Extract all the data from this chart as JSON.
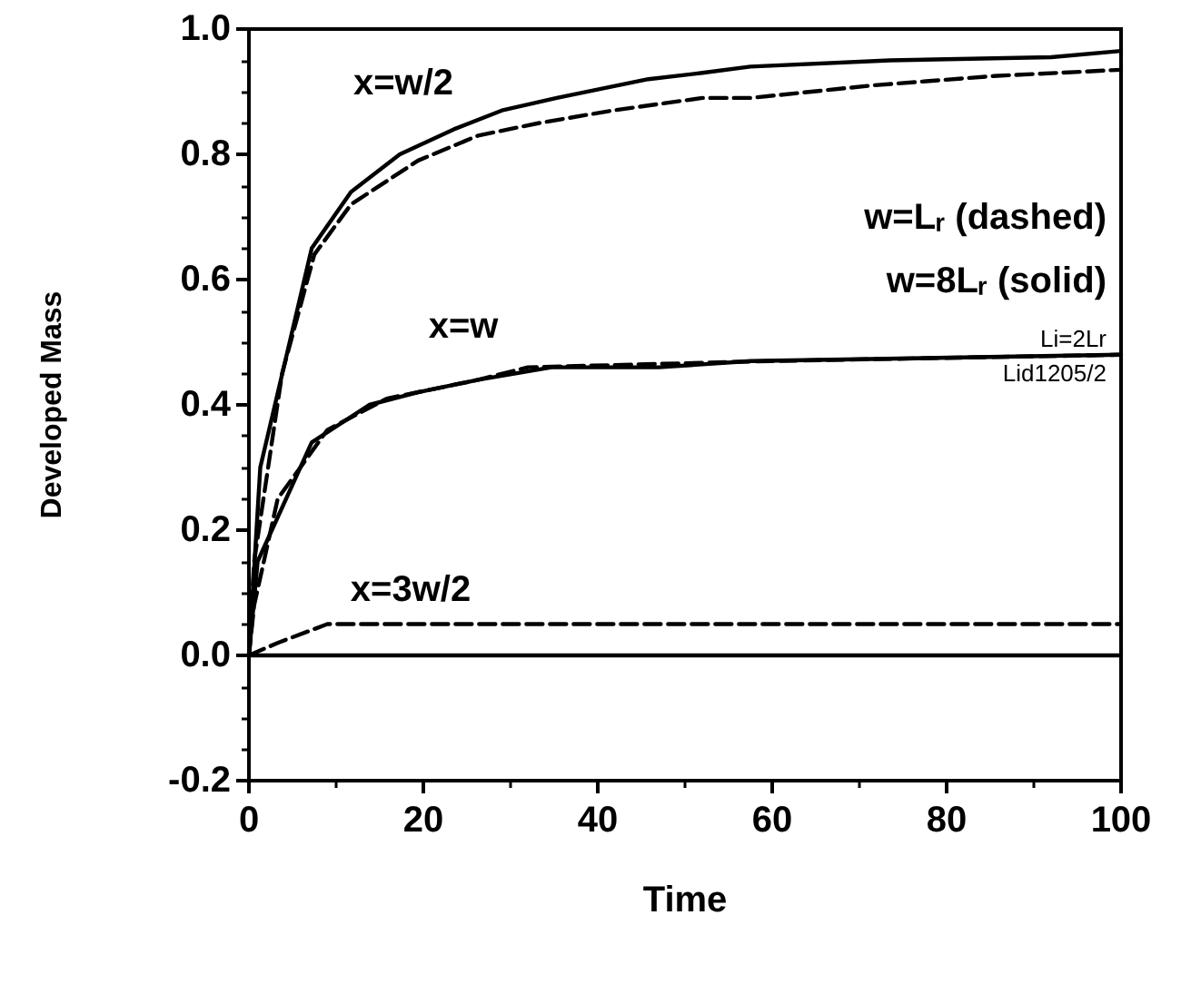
{
  "chart_data": {
    "type": "line",
    "xlabel": "Time",
    "ylabel": "Developed Mass",
    "xlim": [
      0,
      100
    ],
    "xticks": [
      0,
      20,
      40,
      60,
      80,
      100
    ],
    "ylim": [
      -0.2,
      1.0
    ],
    "yticks": [
      {
        "value": -0.2,
        "label": "-0.2"
      },
      {
        "value": 0,
        "label": "0.0"
      },
      {
        "value": 0.2,
        "label": "0.2"
      },
      {
        "value": 0.4,
        "label": "0.4"
      },
      {
        "value": 0.6,
        "label": "0.6"
      },
      {
        "value": 0.8,
        "label": "0.8"
      },
      {
        "value": 1.0,
        "label": "1.0"
      }
    ],
    "grid": false,
    "marker": "none",
    "series": [
      {
        "color": "#000000",
        "line_style": "solid",
        "x": [
          0,
          1.3,
          7.2,
          11.7,
          17.3,
          23.5,
          29,
          35.3,
          45.8,
          52,
          57.5,
          73.5,
          92,
          100
        ],
        "values": [
          0,
          0.3,
          0.65,
          0.74,
          0.8,
          0.84,
          0.87,
          0.89,
          0.92,
          0.93,
          0.94,
          0.95,
          0.955,
          0.965
        ]
      },
      {
        "color": "#000000",
        "line_style": "dashed",
        "x": [
          0,
          0.6,
          3.8,
          7.5,
          11.7,
          19.4,
          26.3,
          33.3,
          41.7,
          52,
          57.5,
          71.5,
          85.4,
          100
        ],
        "values": [
          0,
          0.15,
          0.45,
          0.64,
          0.72,
          0.79,
          0.83,
          0.85,
          0.87,
          0.89,
          0.89,
          0.91,
          0.925,
          0.935
        ]
      },
      {
        "color": "#000000",
        "line_style": "solid",
        "x": [
          0,
          1,
          7.2,
          13.8,
          19.4,
          26.3,
          34.7,
          47,
          57.5,
          100
        ],
        "values": [
          0,
          0.15,
          0.34,
          0.4,
          0.42,
          0.44,
          0.46,
          0.46,
          0.47,
          0.48
        ]
      },
      {
        "color": "#000000",
        "line_style": "dashed",
        "x": [
          0,
          0.6,
          3.3,
          9,
          15.8,
          26.3,
          32,
          60,
          100
        ],
        "values": [
          0,
          0.08,
          0.25,
          0.36,
          0.41,
          0.44,
          0.46,
          0.47,
          0.48
        ]
      },
      {
        "color": "#000000",
        "line_style": "dashed",
        "x": [
          0,
          3.3,
          9,
          100
        ],
        "values": [
          0,
          0.02,
          0.05,
          0.05
        ]
      },
      {
        "color": "#000000",
        "line_style": "solid",
        "x": [
          0,
          100
        ],
        "values": [
          0,
          0
        ]
      }
    ],
    "annotations": [
      "x=w/2",
      "x=w",
      "x=3w/2",
      "w=Lᵣ (dashed)",
      "w=8Lᵣ (solid)",
      "Li=2Lr",
      "Lid1205/2"
    ]
  }
}
